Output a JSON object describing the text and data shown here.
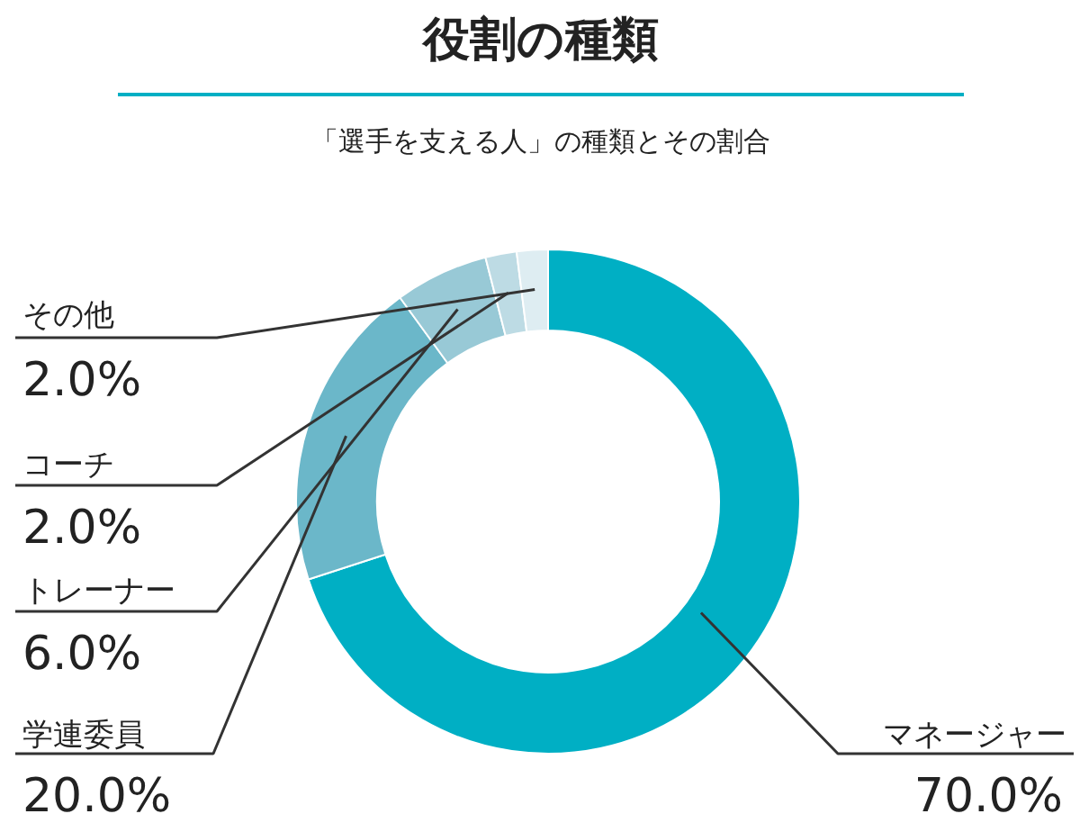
{
  "chart_data": {
    "type": "donut",
    "title": "役割の種類",
    "subtitle": "「選手を支える人」の種類とその割合",
    "categories": [
      "マネージャー",
      "学連委員",
      "トレーナー",
      "コーチ",
      "その他"
    ],
    "values": [
      70.0,
      20.0,
      6.0,
      2.0,
      2.0
    ],
    "colors": [
      "#00afc4",
      "#6bb7c9",
      "#98c9d6",
      "#bddbe4",
      "#deedf2"
    ],
    "value_labels": [
      "70.0%",
      "20.0%",
      "6.0%",
      "2.0%",
      "2.0%"
    ]
  }
}
